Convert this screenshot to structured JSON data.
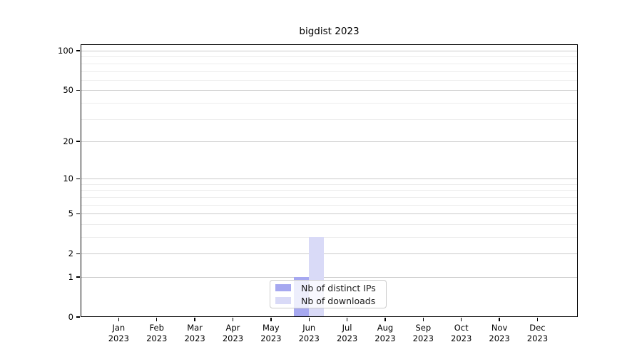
{
  "chart_data": {
    "type": "bar",
    "title": "bigdist 2023",
    "categories": [
      "Jan 2023",
      "Feb 2023",
      "Mar 2023",
      "Apr 2023",
      "May 2023",
      "Jun 2023",
      "Jul 2023",
      "Aug 2023",
      "Sep 2023",
      "Oct 2023",
      "Nov 2023",
      "Dec 2023"
    ],
    "series": [
      {
        "name": "Nb of distinct IPs",
        "color": "#a6a8f0",
        "values": [
          0,
          0,
          0,
          0,
          0,
          1,
          0,
          0,
          0,
          0,
          0,
          0
        ]
      },
      {
        "name": "Nb of downloads",
        "color": "#d9daf7",
        "values": [
          0,
          0,
          0,
          0,
          0,
          3,
          0,
          0,
          0,
          0,
          0,
          0
        ]
      }
    ],
    "xlabel": "",
    "ylabel": "",
    "yscale": "symlog-log1p",
    "ylim": [
      0,
      112
    ],
    "y_ticks": [
      0,
      1,
      2,
      5,
      10,
      20,
      50,
      100
    ],
    "y_major_gridlines": [
      1,
      2,
      5,
      10,
      20,
      50,
      100
    ],
    "y_minor_gridlines": [
      3,
      4,
      6,
      7,
      8,
      9,
      30,
      40,
      60,
      70,
      80,
      90
    ],
    "grid": "horizontal",
    "legend_position": "bottom-center",
    "colors": {
      "axis": "#000000",
      "major_gridline": "#cbcbcb",
      "minor_gridline": "#ececec",
      "background": "#ffffff"
    }
  }
}
